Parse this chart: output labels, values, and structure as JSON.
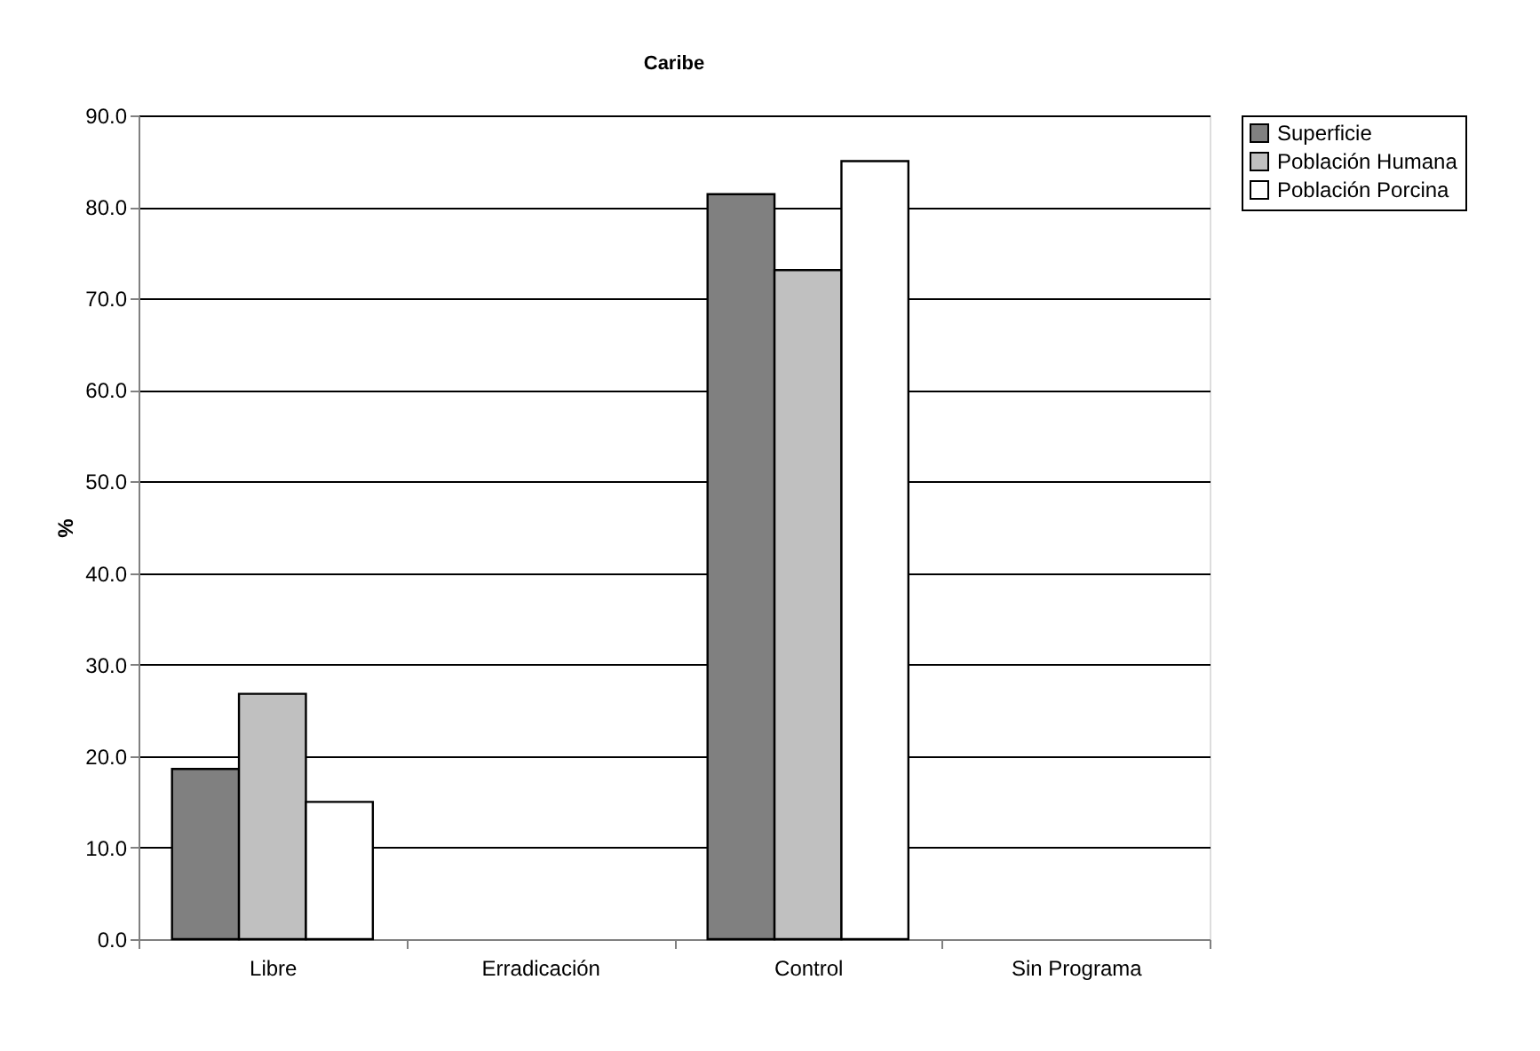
{
  "chart_data": {
    "type": "bar",
    "title": "Caribe",
    "ylabel": "%",
    "categories": [
      "Libre",
      "Erradicación",
      "Control",
      "Sin Programa"
    ],
    "series": [
      {
        "name": "Superficie",
        "color": "#808080",
        "values": [
          18.6,
          null,
          81.4,
          null
        ]
      },
      {
        "name": "Población Humana",
        "color": "#c0c0c0",
        "values": [
          26.8,
          null,
          73.1,
          null
        ]
      },
      {
        "name": "Población Porcina",
        "color": "#ffffff",
        "values": [
          15.0,
          null,
          85.0,
          null
        ]
      }
    ],
    "ylim": [
      0,
      90
    ],
    "yticks": [
      {
        "value": 0,
        "label": "0.0"
      },
      {
        "value": 10,
        "label": "10.0"
      },
      {
        "value": 20,
        "label": "20.0"
      },
      {
        "value": 30,
        "label": "30.0"
      },
      {
        "value": 40,
        "label": "40.0"
      },
      {
        "value": 50,
        "label": "50.0"
      },
      {
        "value": 60,
        "label": "60.0"
      },
      {
        "value": 70,
        "label": "70.0"
      },
      {
        "value": 80,
        "label": "80.0"
      },
      {
        "value": 90,
        "label": "90.0"
      }
    ],
    "grid": "y",
    "legend": "right"
  }
}
